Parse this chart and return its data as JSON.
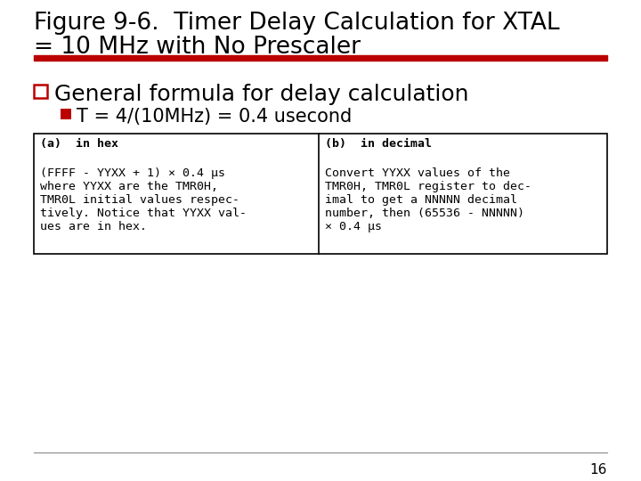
{
  "title_line1": "Figure 9-6.  Timer Delay Calculation for XTAL",
  "title_line2": "= 10 MHz with No Prescaler",
  "bullet1": "General formula for delay calculation",
  "sub_bullet1": "T = 4/(10MHz) = 0.4 usecond",
  "box_a_header": "(a)  in hex",
  "box_b_header": "(b)  in decimal",
  "box_a_lines": [
    "(FFFF - YYXX + 1) × 0.4 μs",
    "where YYXX are the TMR0H,",
    "TMR0L initial values respec-",
    "tively. Notice that YYXX val-",
    "ues are in hex."
  ],
  "box_b_lines": [
    "Convert YYXX values of the",
    "TMR0H, TMR0L register to dec-",
    "imal to get a NNNNN decimal",
    "number, then (65536 - NNNNN)",
    "× 0.4 μs"
  ],
  "page_number": "16",
  "bg_color": "#ffffff",
  "title_color": "#000000",
  "red_bar_color": "#bb0000",
  "bullet_box_color": "#bb0000",
  "sub_bullet_color": "#bb0000",
  "box_border_color": "#000000",
  "mono_text_color": "#000000",
  "line_color": "#888888",
  "title_fontsize": 19,
  "bullet_fontsize": 18,
  "sub_bullet_fontsize": 15,
  "mono_fontsize": 9.5
}
